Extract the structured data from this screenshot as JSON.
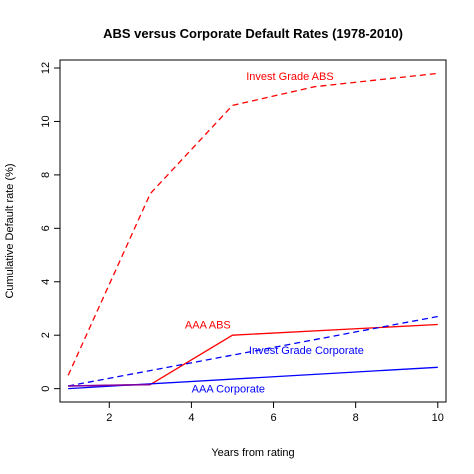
{
  "chart_data": {
    "type": "line",
    "title": "ABS versus Corporate Default Rates (1978-2010)",
    "xlabel": "Years from rating",
    "ylabel": "Cumulative Default rate (%)",
    "xlim": [
      0.8,
      10.2
    ],
    "ylim": [
      -0.5,
      12.3
    ],
    "xticks": [
      2,
      4,
      6,
      8,
      10
    ],
    "yticks": [
      0,
      2,
      4,
      6,
      8,
      10,
      12
    ],
    "grid": false,
    "legend": "none",
    "colors": {
      "red": "#ff0000",
      "blue": "#0000ff",
      "purple": "#7f00a0"
    },
    "series": [
      {
        "name": "Invest Grade ABS",
        "color": "#ff0000",
        "dash": true,
        "x": [
          1,
          3,
          5,
          7,
          10
        ],
        "y": [
          0.5,
          7.3,
          10.6,
          11.3,
          11.8
        ]
      },
      {
        "name": "AAA ABS",
        "color": "#ff0000",
        "dash": false,
        "x": [
          1,
          3,
          5,
          10
        ],
        "y": [
          0.1,
          0.15,
          2.0,
          2.4
        ]
      },
      {
        "name": "Invest Grade Corporate",
        "color": "#0000ff",
        "dash": true,
        "x": [
          1,
          10
        ],
        "y": [
          0.1,
          2.7
        ]
      },
      {
        "name": "AAA Corporate",
        "color": "#0000ff",
        "dash": false,
        "x": [
          1,
          10
        ],
        "y": [
          0.0,
          0.8
        ]
      }
    ],
    "overlay": {
      "name": "AAA ABS",
      "color": "#7f00a0",
      "x": [
        1,
        3
      ],
      "y": [
        0.1,
        0.15
      ]
    },
    "annotations": [
      {
        "text": "Invest Grade ABS",
        "x": 6.4,
        "y": 11.7,
        "color": "#ff0000"
      },
      {
        "text": "AAA ABS",
        "x": 4.4,
        "y": 2.4,
        "color": "#ff0000"
      },
      {
        "text": "Invest Grade Corporate",
        "x": 6.8,
        "y": 1.45,
        "color": "#0000ff"
      },
      {
        "text": "AAA Corporate",
        "x": 4.9,
        "y": 0.0,
        "color": "#0000ff"
      }
    ]
  }
}
